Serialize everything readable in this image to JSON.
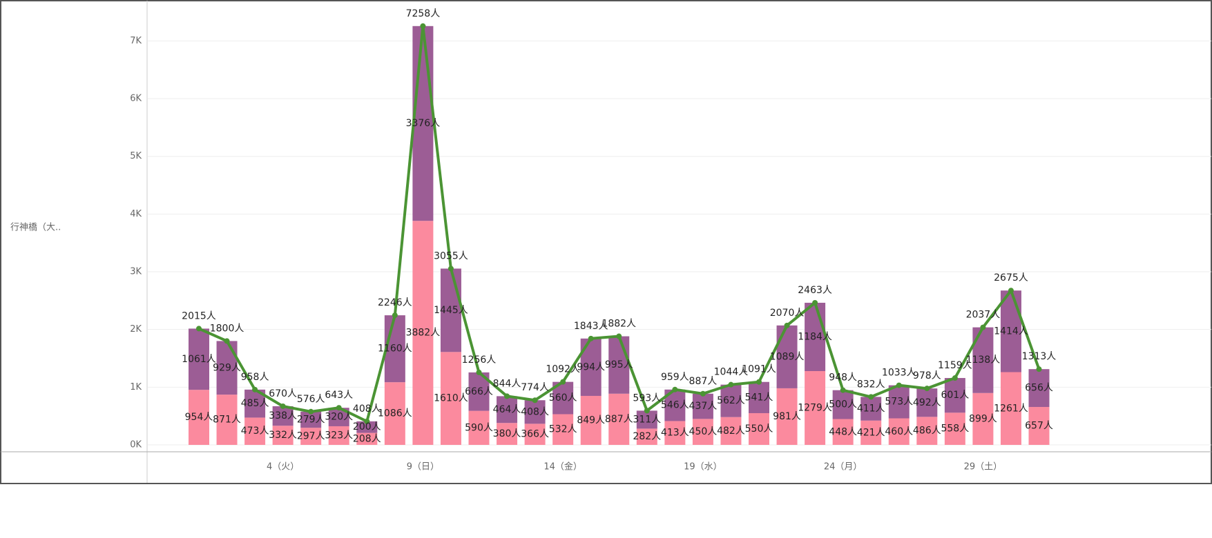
{
  "chart_data": {
    "type": "bar",
    "stacked": true,
    "y_axis_title": "行神橋（大..",
    "categories": [
      null,
      null,
      null,
      "4（火）",
      null,
      null,
      null,
      null,
      "9（日）",
      null,
      null,
      null,
      null,
      "14（金）",
      null,
      null,
      null,
      null,
      "19（水）",
      null,
      null,
      null,
      null,
      "24（月）",
      null,
      null,
      null,
      null,
      "29（土）",
      null,
      null
    ],
    "ylim": [
      0,
      7650
    ],
    "yticks": [
      {
        "value": 0,
        "label": "0K"
      },
      {
        "value": 1000,
        "label": "1K"
      },
      {
        "value": 2000,
        "label": "2K"
      },
      {
        "value": 3000,
        "label": "3K"
      },
      {
        "value": 4000,
        "label": "4K"
      },
      {
        "value": 5000,
        "label": "5K"
      },
      {
        "value": 6000,
        "label": "6K"
      },
      {
        "value": 7000,
        "label": "7K"
      }
    ],
    "grid": true,
    "series": [
      {
        "color": "#fb8a9e",
        "values": [
          954,
          871,
          473,
          332,
          297,
          323,
          208,
          1086,
          3882,
          1610,
          590,
          380,
          366,
          532,
          849,
          887,
          282,
          413,
          450,
          482,
          550,
          981,
          1279,
          448,
          421,
          460,
          486,
          558,
          899,
          1261,
          657
        ],
        "value_labels": [
          "954人",
          "871人",
          "473人",
          "332人",
          "297人",
          "323人",
          "208人",
          "1086人",
          "3882人",
          "1610人",
          "590人",
          "380人",
          "366人",
          "532人",
          "849人",
          "887人",
          "282人",
          "413人",
          "450人",
          "482人",
          "550人",
          "981人",
          "1279人",
          "448人",
          "421人",
          "460人",
          "486人",
          "558人",
          "899人",
          "1261人",
          "657人"
        ]
      },
      {
        "color": "#9c5d95",
        "values": [
          1061,
          929,
          485,
          338,
          279,
          320,
          200,
          1160,
          3376,
          1445,
          666,
          464,
          408,
          560,
          994,
          995,
          311,
          546,
          437,
          562,
          541,
          1089,
          1184,
          500,
          411,
          573,
          492,
          601,
          1138,
          1414,
          656
        ],
        "value_labels": [
          "1061人",
          "929人",
          "485人",
          "338人",
          "279人",
          "320人",
          "200人",
          "1160人",
          "3376人",
          "1445人",
          "666人",
          "464人",
          "408人",
          "560人",
          "994人",
          "995人",
          "311人",
          "546人",
          "437人",
          "562人",
          "541人",
          "1089人",
          "1184人",
          "500人",
          "411人",
          "573人",
          "492人",
          "601人",
          "1138人",
          "1414人",
          "656人"
        ]
      },
      {
        "type": "line",
        "color": "#4b9434",
        "values": [
          2015,
          1800,
          958,
          670,
          576,
          643,
          408,
          2246,
          7258,
          3055,
          1256,
          844,
          774,
          1092,
          1843,
          1882,
          593,
          959,
          887,
          1044,
          1091,
          2070,
          2463,
          948,
          832,
          1033,
          978,
          1159,
          2037,
          2675,
          1313
        ],
        "value_labels": [
          "2015人",
          "1800人",
          "958人",
          "670人",
          "576人",
          "643人",
          "408人",
          "2246人",
          "7258人",
          "3055人",
          "1256人",
          "844人",
          "774人",
          "1092人",
          "1843人",
          "1882人",
          "593人",
          "959人",
          "887人",
          "1044人",
          "1091人",
          "2070人",
          "2463人",
          "948人",
          "832人",
          "1033人",
          "978人",
          "1159人",
          "2037人",
          "2675人",
          "1313人"
        ]
      }
    ]
  }
}
